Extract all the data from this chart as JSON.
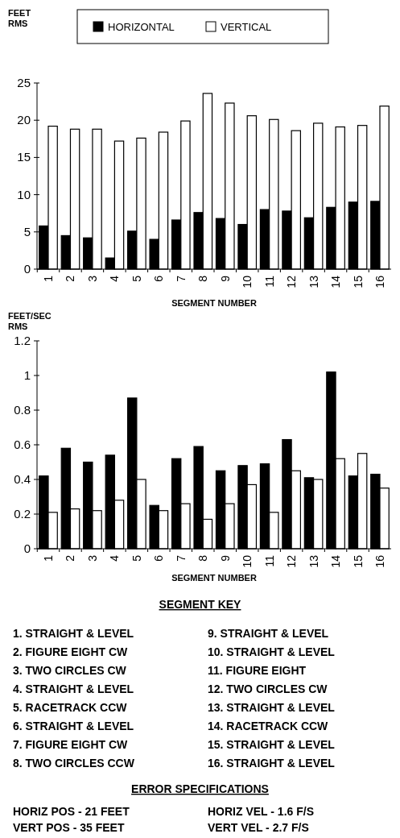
{
  "chart_data": [
    {
      "type": "bar",
      "ylabel": "FEET RMS",
      "xlabel": "SEGMENT NUMBER",
      "categories": [
        "1",
        "2",
        "3",
        "4",
        "5",
        "6",
        "7",
        "8",
        "9",
        "10",
        "11",
        "12",
        "13",
        "14",
        "15",
        "16"
      ],
      "series": [
        {
          "name": "HORIZONTAL",
          "color": "#000000",
          "values": [
            5.8,
            4.5,
            4.2,
            1.5,
            5.1,
            4.0,
            6.6,
            7.6,
            6.8,
            6.0,
            8.0,
            7.8,
            6.9,
            8.3,
            9.0,
            9.1
          ]
        },
        {
          "name": "VERTICAL",
          "color": "#ffffff",
          "values": [
            19.2,
            18.8,
            18.8,
            17.2,
            17.6,
            18.4,
            19.9,
            23.6,
            22.3,
            20.6,
            20.1,
            18.6,
            19.6,
            19.1,
            19.3,
            21.9
          ]
        }
      ],
      "ylim": [
        0,
        25
      ],
      "yticks": [
        0,
        5,
        10,
        15,
        20,
        25
      ],
      "legend": "top"
    },
    {
      "type": "bar",
      "ylabel": "FEET/SEC RMS",
      "xlabel": "SEGMENT NUMBER",
      "categories": [
        "1",
        "2",
        "3",
        "4",
        "5",
        "6",
        "7",
        "8",
        "9",
        "10",
        "11",
        "12",
        "13",
        "14",
        "15",
        "16"
      ],
      "series": [
        {
          "color": "#000000",
          "values": [
            0.42,
            0.58,
            0.5,
            0.54,
            0.87,
            0.25,
            0.52,
            0.59,
            0.45,
            0.48,
            0.49,
            0.63,
            0.41,
            1.02,
            0.42,
            0.43
          ]
        },
        {
          "color": "#ffffff",
          "values": [
            0.21,
            0.23,
            0.22,
            0.28,
            0.4,
            0.22,
            0.26,
            0.17,
            0.26,
            0.37,
            0.21,
            0.45,
            0.4,
            0.52,
            0.55,
            0.35
          ]
        }
      ],
      "ylim": [
        0,
        1.2
      ],
      "yticks": [
        0,
        0.2,
        0.4,
        0.6,
        0.8,
        1,
        1.2
      ]
    },
    {
      "type": "other",
      "title": "SEGMENT KEY",
      "annotations": [
        "1. STRAIGHT & LEVEL",
        "2. FIGURE EIGHT CW",
        "3. TWO CIRCLES CW",
        "4. STRAIGHT & LEVEL",
        "5. RACETRACK CCW",
        "6. STRAIGHT & LEVEL",
        "7. FIGURE EIGHT CW",
        "8. TWO CIRCLES CCW",
        "9. STRAIGHT & LEVEL",
        "10. STRAIGHT & LEVEL",
        "11. FIGURE EIGHT",
        "12. TWO CIRCLES CW",
        "13. STRAIGHT & LEVEL",
        "14. RACETRACK CCW",
        "15. STRAIGHT & LEVEL",
        "16. STRAIGHT & LEVEL"
      ]
    },
    {
      "type": "other",
      "title": "ERROR SPECIFICATIONS",
      "annotations": [
        "HORIZ POS - 21 FEET",
        "VERT POS - 35 FEET",
        "HORIZ VEL - 1.6 F/S",
        "VERT VEL - 2.7 F/S"
      ]
    }
  ]
}
